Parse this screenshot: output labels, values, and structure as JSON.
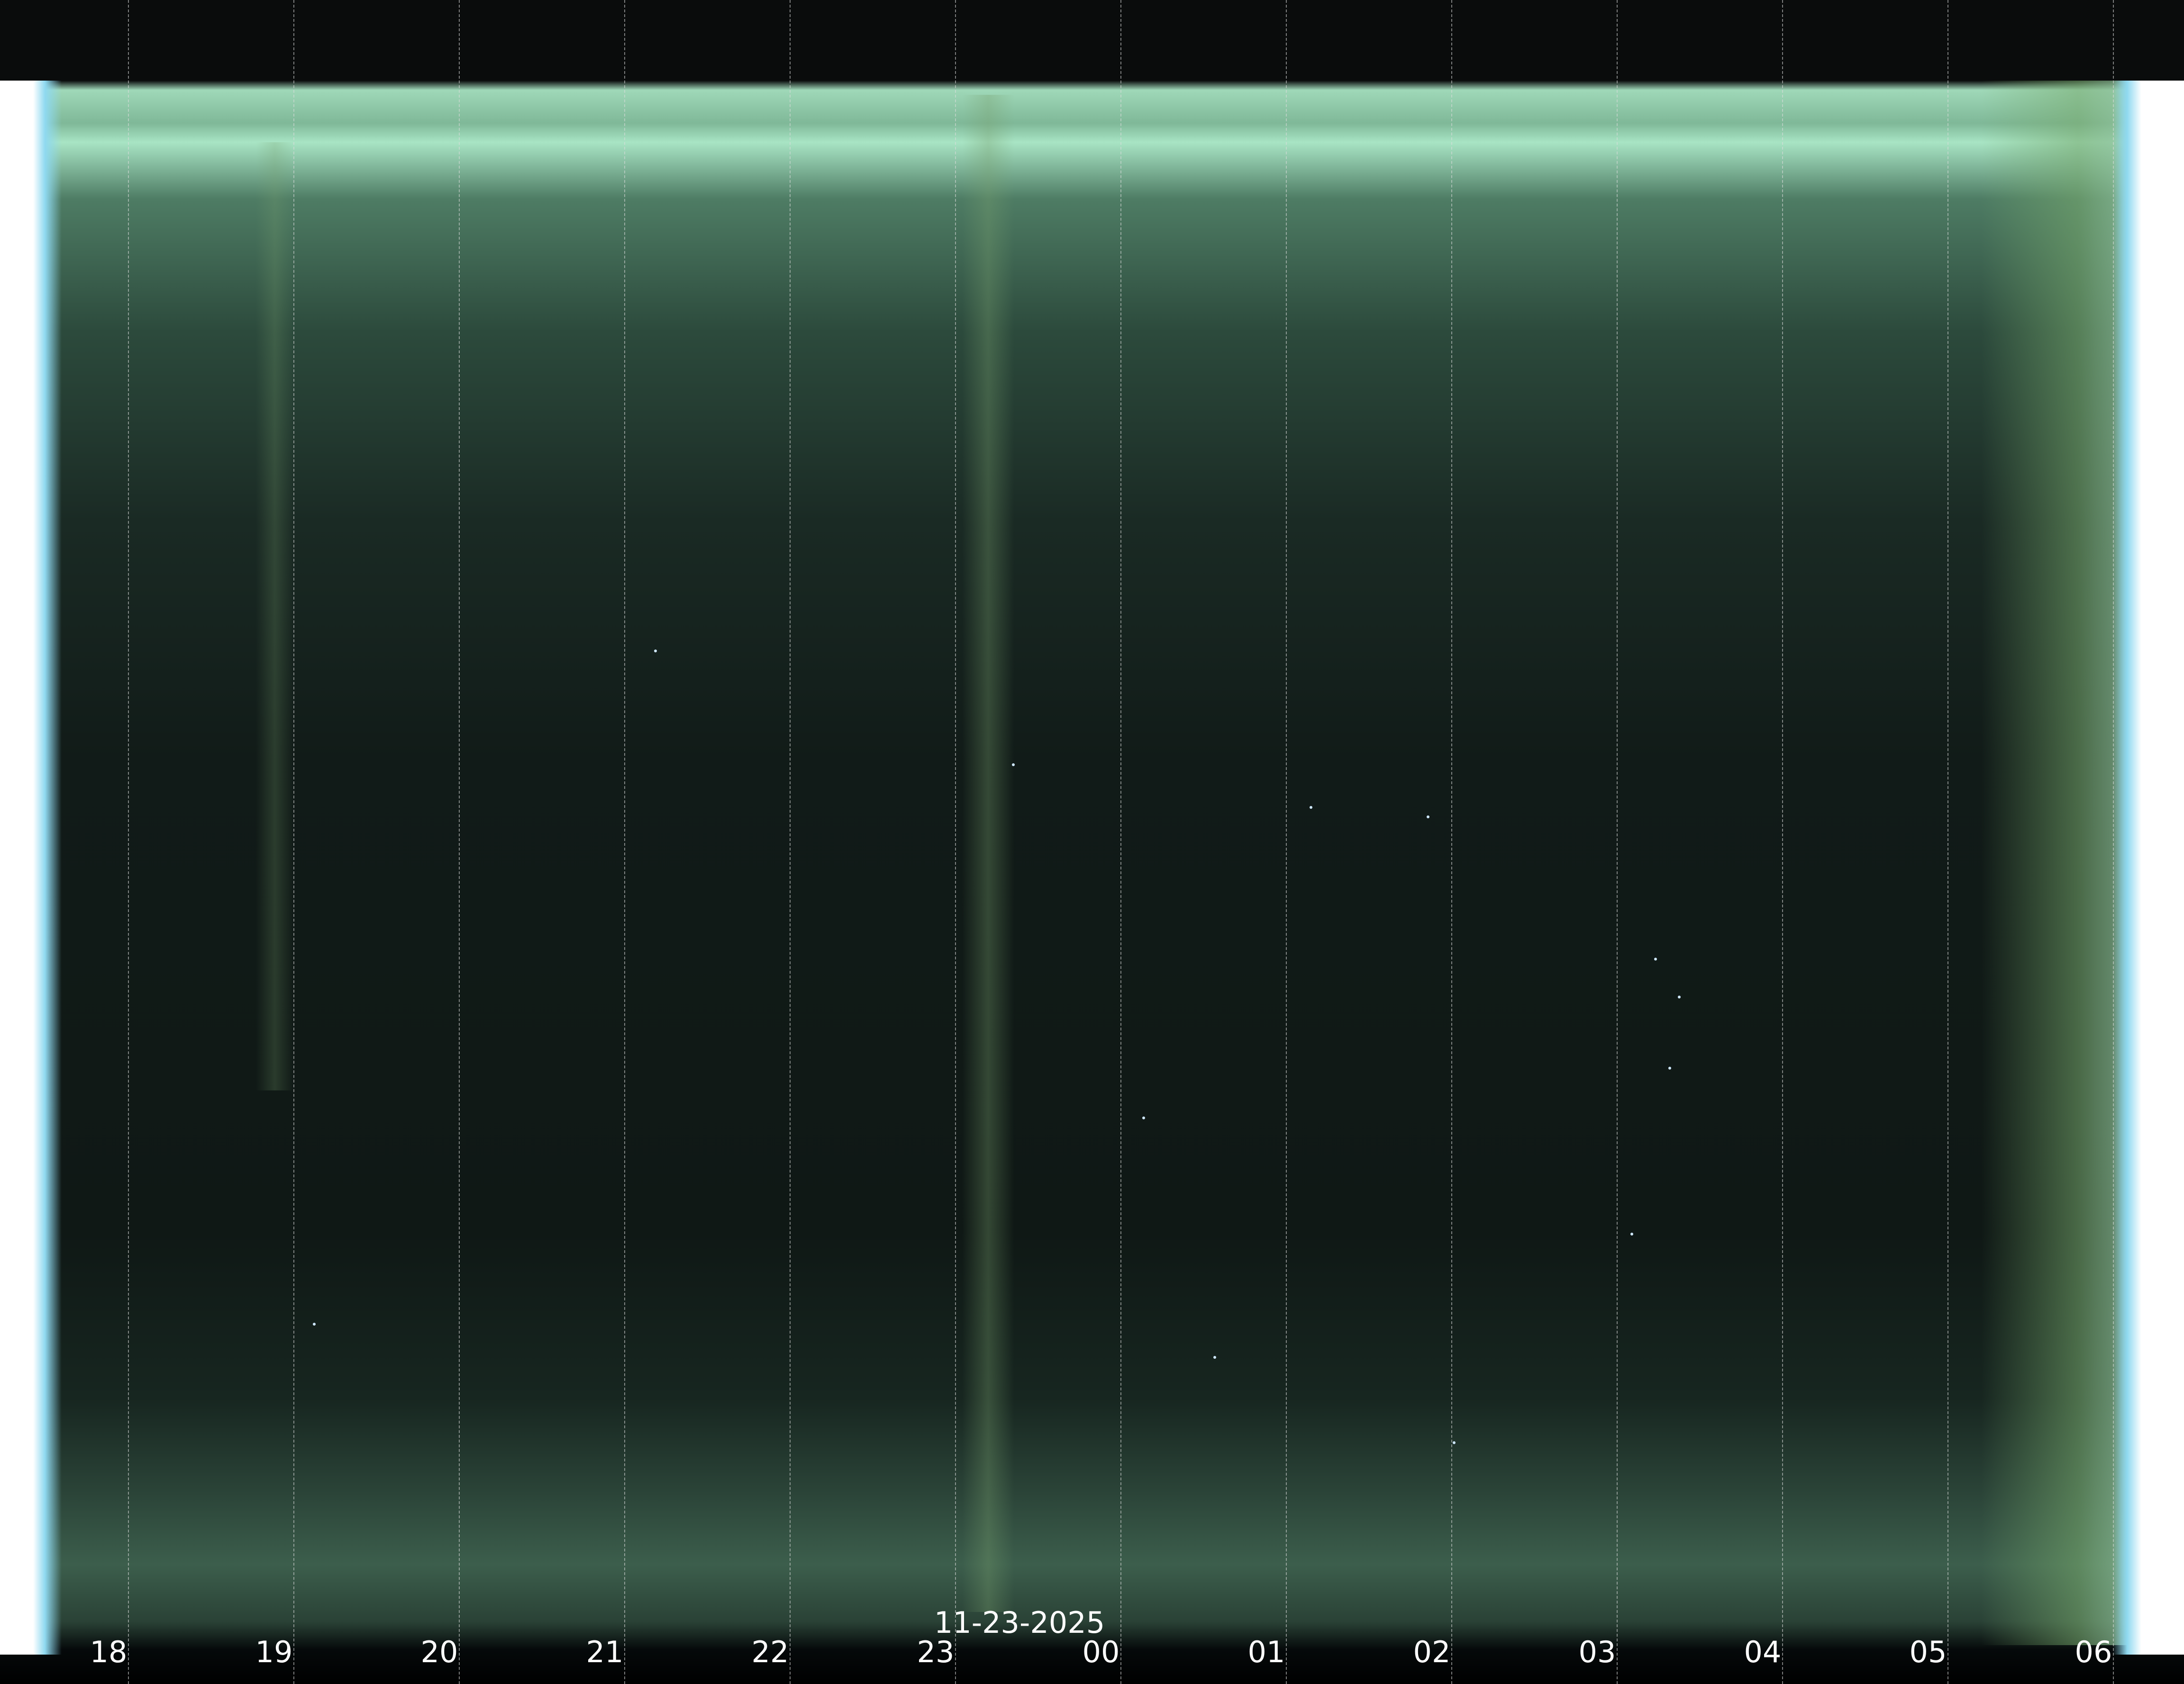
{
  "keogram": {
    "date": "11-23-2025",
    "hours": [
      "18",
      "19",
      "20",
      "21",
      "22",
      "23",
      "00",
      "01",
      "02",
      "03",
      "04",
      "05",
      "06"
    ]
  }
}
